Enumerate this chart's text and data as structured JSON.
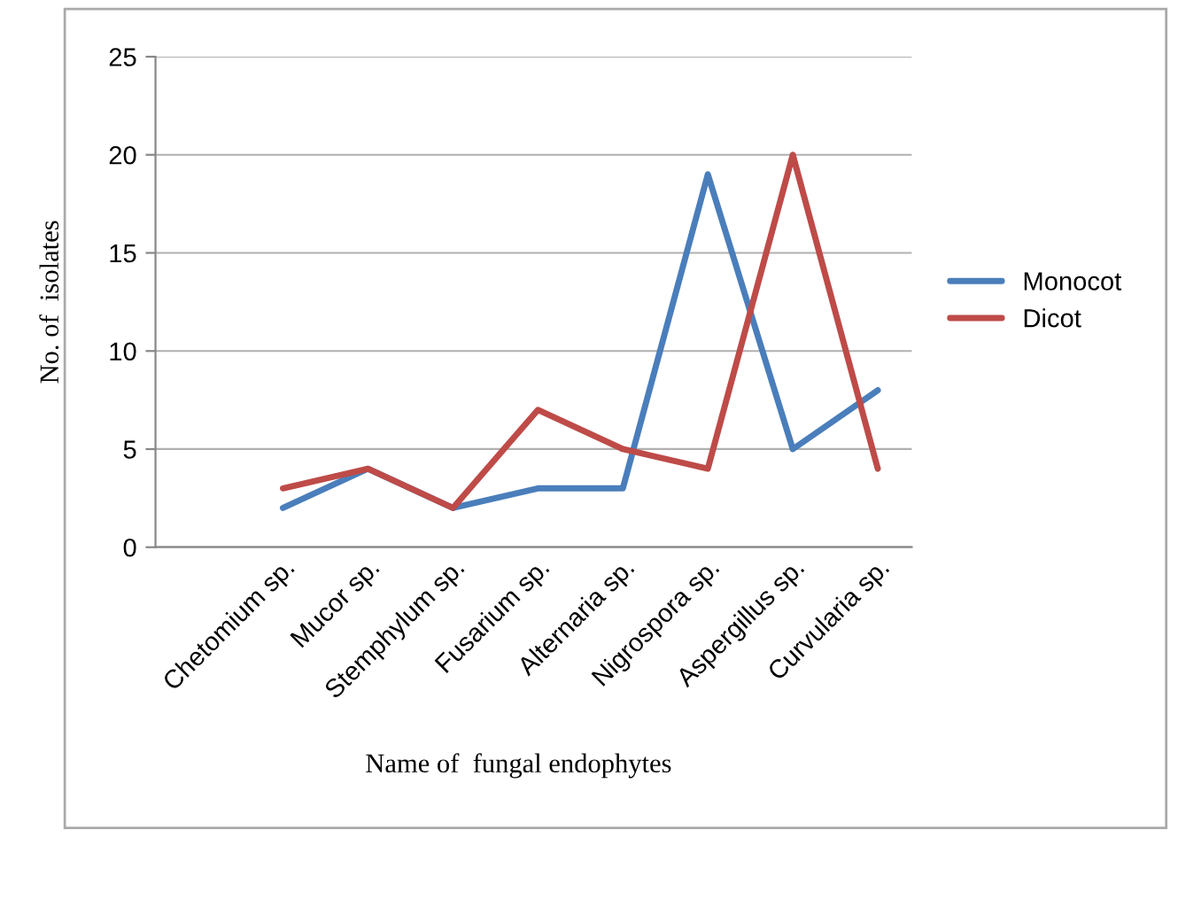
{
  "chart_data": {
    "type": "line",
    "xlabel": "Name of  fungal endophytes",
    "ylabel": "No. of  isolates",
    "categories": [
      "Chetomium sp.",
      "Mucor sp.",
      "Stemphylum sp.",
      "Fusarium sp.",
      "Alternaria sp.",
      "Nigrospora sp.",
      "Aspergillus sp.",
      "Curvularia sp."
    ],
    "series": [
      {
        "name": "Monocot",
        "color": "#4a7ebb",
        "values": [
          2,
          4,
          2,
          3,
          3,
          19,
          5,
          8
        ]
      },
      {
        "name": "Dicot",
        "color": "#be4b48",
        "values": [
          3,
          4,
          2,
          7,
          5,
          4,
          20,
          4
        ]
      }
    ],
    "ylim": [
      0,
      25
    ],
    "yticks": [
      0,
      5,
      10,
      15,
      20,
      25
    ],
    "grid": "y",
    "legend": "right",
    "marker": "none",
    "line_style": "solid"
  }
}
